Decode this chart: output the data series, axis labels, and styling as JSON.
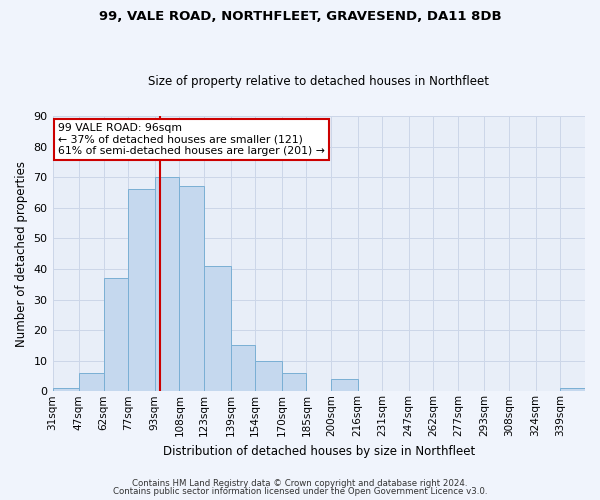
{
  "title1": "99, VALE ROAD, NORTHFLEET, GRAVESEND, DA11 8DB",
  "title2": "Size of property relative to detached houses in Northfleet",
  "xlabel": "Distribution of detached houses by size in Northfleet",
  "ylabel": "Number of detached properties",
  "bin_labels": [
    "31sqm",
    "47sqm",
    "62sqm",
    "77sqm",
    "93sqm",
    "108sqm",
    "123sqm",
    "139sqm",
    "154sqm",
    "170sqm",
    "185sqm",
    "200sqm",
    "216sqm",
    "231sqm",
    "247sqm",
    "262sqm",
    "277sqm",
    "293sqm",
    "308sqm",
    "324sqm",
    "339sqm"
  ],
  "bin_edges": [
    31,
    47,
    62,
    77,
    93,
    108,
    123,
    139,
    154,
    170,
    185,
    200,
    216,
    231,
    247,
    262,
    277,
    293,
    308,
    324,
    339,
    354
  ],
  "bar_heights": [
    1,
    6,
    37,
    66,
    70,
    67,
    41,
    15,
    10,
    6,
    0,
    4,
    0,
    0,
    0,
    0,
    0,
    0,
    0,
    0,
    1
  ],
  "bar_color": "#c5d8ee",
  "bar_edge_color": "#7aafd4",
  "grid_color": "#ccd6e8",
  "background_color": "#e8eef8",
  "fig_background": "#f0f4fc",
  "property_line_x": 96,
  "property_line_color": "#cc0000",
  "annotation_line1": "99 VALE ROAD: 96sqm",
  "annotation_line2": "← 37% of detached houses are smaller (121)",
  "annotation_line3": "61% of semi-detached houses are larger (201) →",
  "annotation_box_color": "#ffffff",
  "annotation_box_edge": "#cc0000",
  "ylim": [
    0,
    90
  ],
  "yticks": [
    0,
    10,
    20,
    30,
    40,
    50,
    60,
    70,
    80,
    90
  ],
  "footer1": "Contains HM Land Registry data © Crown copyright and database right 2024.",
  "footer2": "Contains public sector information licensed under the Open Government Licence v3.0."
}
